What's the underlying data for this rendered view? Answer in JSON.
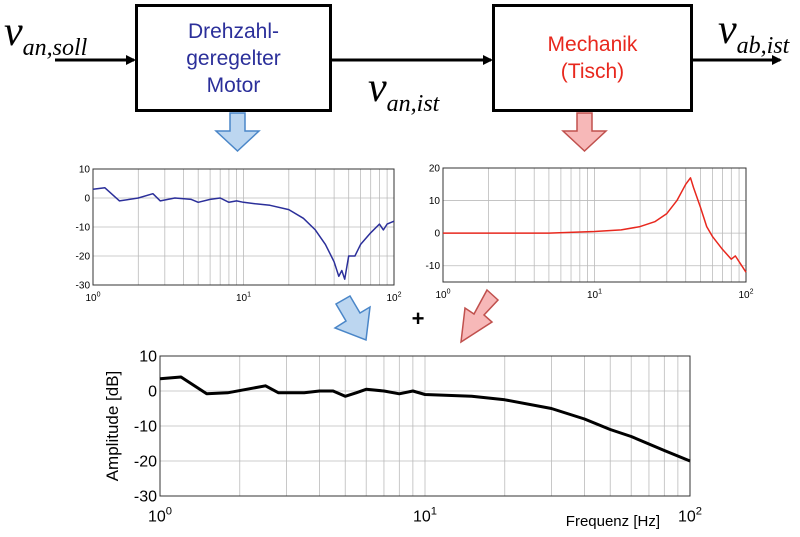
{
  "blocks": {
    "motor": {
      "lines": [
        "Drehzahl-",
        "geregelter",
        "Motor"
      ],
      "color": "#2b2f9a"
    },
    "mechanics": {
      "lines": [
        "Mechanik",
        "(Tisch)"
      ],
      "color": "#e8281e"
    }
  },
  "signals": {
    "input": {
      "base": "v",
      "sub": "an,soll"
    },
    "intermediate": {
      "base": "v",
      "sub": "an,ist"
    },
    "output": {
      "base": "v",
      "sub": "ab,ist"
    }
  },
  "combine_symbol": "+",
  "arrow_colors": {
    "blue_fill": "#bcd6f0",
    "blue_stroke": "#4a86c8",
    "red_fill": "#f7b8b8",
    "red_stroke": "#c0504d"
  },
  "chart_data": [
    {
      "id": "motor",
      "type": "line",
      "xscale": "log",
      "xlim": [
        1,
        100
      ],
      "ylim": [
        -30,
        10
      ],
      "yticks": [
        10,
        0,
        -10,
        -20,
        -30
      ],
      "xtick_labels": [
        {
          "base": "10",
          "exp": "0"
        },
        {
          "base": "10",
          "exp": "1"
        },
        {
          "base": "10",
          "exp": "2"
        }
      ],
      "grid": true,
      "color": "#2b2f9a",
      "x": [
        1,
        1.2,
        1.5,
        2,
        2.5,
        2.8,
        3.5,
        4.5,
        5,
        6,
        7,
        8,
        9,
        10,
        12,
        15,
        20,
        25,
        30,
        35,
        40,
        43,
        45,
        47,
        50,
        55,
        60,
        70,
        80,
        85,
        90,
        100
      ],
      "y": [
        3,
        3.5,
        -1,
        0,
        1.5,
        -1,
        0,
        -0.5,
        -1.5,
        -0.5,
        0,
        -1.5,
        -1,
        -1.5,
        -2,
        -2.5,
        -4,
        -7,
        -11,
        -16,
        -22,
        -27,
        -25,
        -28,
        -20,
        -20,
        -16,
        -12,
        -9,
        -11,
        -9,
        -8
      ]
    },
    {
      "id": "mechanics",
      "type": "line",
      "xscale": "log",
      "xlim": [
        1,
        100
      ],
      "ylim": [
        -15,
        20
      ],
      "yticks": [
        20,
        10,
        0,
        -10
      ],
      "xtick_labels": [
        {
          "base": "10",
          "exp": "0"
        },
        {
          "base": "10",
          "exp": "1"
        },
        {
          "base": "10",
          "exp": "2"
        }
      ],
      "grid": true,
      "color": "#e8281e",
      "x": [
        1,
        2,
        5,
        10,
        15,
        20,
        25,
        30,
        35,
        40,
        43,
        45,
        50,
        55,
        60,
        70,
        80,
        85,
        100
      ],
      "y": [
        0,
        0,
        0,
        0.5,
        1,
        2,
        3.5,
        6,
        10,
        15,
        17,
        14,
        8,
        2,
        -1,
        -5,
        -8,
        -7,
        -12
      ]
    },
    {
      "id": "combined",
      "type": "line",
      "xscale": "log",
      "xlim": [
        1,
        100
      ],
      "ylim": [
        -30,
        10
      ],
      "yticks": [
        10,
        0,
        -10,
        -20,
        -30
      ],
      "xtick_labels": [
        {
          "base": "10",
          "exp": "0"
        },
        {
          "base": "10",
          "exp": "1"
        },
        {
          "base": "10",
          "exp": "2"
        }
      ],
      "xlabel": "Frequenz [Hz]",
      "ylabel": "Amplitude [dB]",
      "grid": true,
      "color": "#000000",
      "x": [
        1,
        1.2,
        1.5,
        1.8,
        2.5,
        2.8,
        3.5,
        4,
        4.5,
        5,
        5.5,
        6,
        7,
        8,
        9,
        10,
        15,
        20,
        30,
        40,
        50,
        60,
        80,
        100
      ],
      "y": [
        3.5,
        4,
        -0.8,
        -0.5,
        1.5,
        -0.5,
        -0.5,
        0,
        0,
        -1.5,
        -0.5,
        0.5,
        0,
        -0.8,
        0,
        -1,
        -1.5,
        -2.5,
        -5,
        -8,
        -11,
        -13,
        -17,
        -20
      ]
    }
  ]
}
